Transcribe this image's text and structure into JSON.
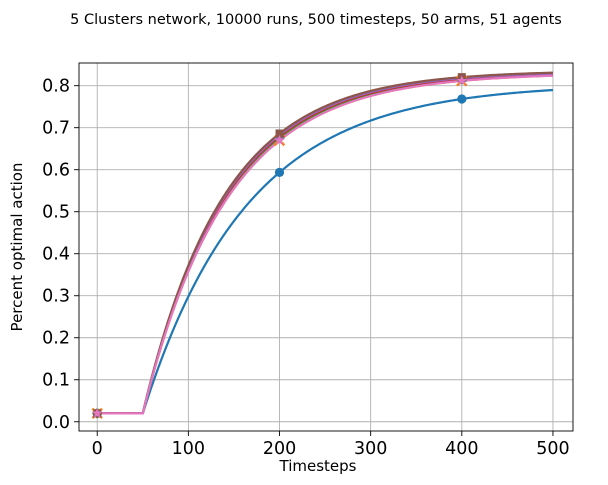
{
  "chart_data": {
    "type": "line",
    "title": "5 Clusters network, 10000 runs, 500 timesteps, 50 arms, 51 agents",
    "xlabel": "Timesteps",
    "ylabel": "Percent optimal action",
    "xlim": [
      -20,
      522
    ],
    "ylim": [
      -0.022,
      0.854
    ],
    "xticks": [
      0,
      100,
      200,
      300,
      400,
      500
    ],
    "yticks": [
      0.0,
      0.1,
      0.2,
      0.3,
      0.4,
      0.5,
      0.6,
      0.7,
      0.8
    ],
    "grid": true,
    "legend": "none",
    "markers_at": [
      0,
      200,
      400
    ],
    "series": [
      {
        "color": "#1f77b4",
        "marker": "circle",
        "flat_until": 50,
        "start": 0.02,
        "final": 0.805,
        "rate": 0.00875,
        "points": [
          [
            0,
            0.02
          ],
          [
            50,
            0.02
          ],
          [
            200,
            0.57
          ],
          [
            400,
            0.748
          ],
          [
            500,
            0.788
          ]
        ]
      },
      {
        "color": "#ff7f0e",
        "marker": "x",
        "flat_until": 50,
        "start": 0.02,
        "final": 0.83,
        "rate": 0.0108,
        "points": [
          [
            0,
            0.02
          ],
          [
            50,
            0.02
          ],
          [
            200,
            0.627
          ],
          [
            400,
            0.776
          ],
          [
            500,
            0.808
          ]
        ]
      },
      {
        "color": "#2ca02c",
        "marker": "plus",
        "flat_until": 50,
        "start": 0.02,
        "final": 0.832,
        "rate": 0.011,
        "points": [
          [
            0,
            0.02
          ],
          [
            50,
            0.02
          ],
          [
            200,
            0.632
          ],
          [
            400,
            0.78
          ],
          [
            500,
            0.812
          ]
        ]
      },
      {
        "color": "#d62728",
        "marker": "diamond",
        "flat_until": 50,
        "start": 0.02,
        "final": 0.833,
        "rate": 0.0111,
        "points": [
          [
            0,
            0.02
          ],
          [
            50,
            0.02
          ],
          [
            200,
            0.634
          ],
          [
            400,
            0.781
          ],
          [
            500,
            0.813
          ]
        ]
      },
      {
        "color": "#9467bd",
        "marker": "triangle",
        "flat_until": 50,
        "start": 0.02,
        "final": 0.834,
        "rate": 0.0112,
        "points": [
          [
            0,
            0.02
          ],
          [
            50,
            0.02
          ],
          [
            200,
            0.636
          ],
          [
            400,
            0.783
          ],
          [
            500,
            0.815
          ]
        ]
      },
      {
        "color": "#8c564b",
        "marker": "square",
        "flat_until": 50,
        "start": 0.02,
        "final": 0.836,
        "rate": 0.0113,
        "points": [
          [
            0,
            0.02
          ],
          [
            50,
            0.02
          ],
          [
            200,
            0.639
          ],
          [
            400,
            0.785
          ],
          [
            500,
            0.817
          ]
        ]
      },
      {
        "color": "#e377c2",
        "marker": "star",
        "flat_until": 50,
        "start": 0.02,
        "final": 0.83,
        "rate": 0.0108,
        "points": [
          [
            0,
            0.02
          ],
          [
            50,
            0.02
          ],
          [
            200,
            0.628
          ],
          [
            400,
            0.777
          ],
          [
            500,
            0.81
          ]
        ]
      }
    ]
  }
}
